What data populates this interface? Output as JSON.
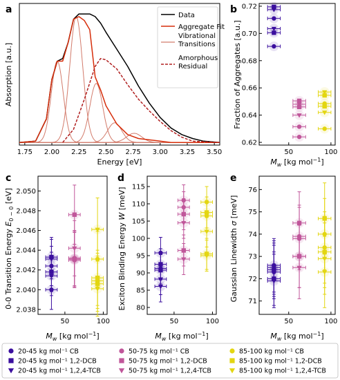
{
  "colors": {
    "g1": "#3b0f9e",
    "g2": "#c0569a",
    "g3": "#e3d611",
    "data_line": "#000000",
    "fit_line": "#d62d0a",
    "vib_line": "#d27a6a",
    "residual_line": "#b01e1e"
  },
  "panels": {
    "a": "a",
    "b": "b",
    "c": "c",
    "d": "d",
    "e": "e"
  },
  "legend": {
    "entries": [
      {
        "label": "20-45 kg mol⁻¹ CB",
        "marker": "circle",
        "color": "g1"
      },
      {
        "label": "20-45 kg mol⁻¹ 1,2-DCB",
        "marker": "square",
        "color": "g1"
      },
      {
        "label": "20-45 kg mol⁻¹ 1,2,4-TCB",
        "marker": "triangle-down",
        "color": "g1"
      },
      {
        "label": "50-75 kg mol⁻¹ CB",
        "marker": "circle",
        "color": "g2"
      },
      {
        "label": "50-75 kg mol⁻¹ 1,2-DCB",
        "marker": "square",
        "color": "g2"
      },
      {
        "label": "50-75 kg mol⁻¹ 1,2,4-TCB",
        "marker": "triangle-down",
        "color": "g2"
      },
      {
        "label": "85-100 kg mol⁻¹ CB",
        "marker": "circle",
        "color": "g3"
      },
      {
        "label": "85-100 kg mol⁻¹ 1,2-DCB",
        "marker": "square",
        "color": "g3"
      },
      {
        "label": "85-100 kg mol⁻¹ 1,2,4-TCB",
        "marker": "triangle-down",
        "color": "g3"
      }
    ]
  },
  "chart_data": [
    {
      "panel": "a",
      "type": "line",
      "xlabel": "Energy [eV]",
      "ylabel": "Absorption [a.u.]",
      "xlim": [
        1.7,
        3.55
      ],
      "ylim": [
        0,
        1.08
      ],
      "xticks": [
        "1.75",
        "2.00",
        "2.25",
        "2.50",
        "2.75",
        "3.00",
        "3.25",
        "3.50"
      ],
      "legend": [
        "Data",
        "Aggregate Fit",
        "Vibrational Transitions",
        "Amorphous Residual"
      ],
      "legend_position": "top-right",
      "series": [
        {
          "name": "Data",
          "style": "solid",
          "color": "data_line",
          "x": [
            1.7,
            1.85,
            1.95,
            2.0,
            2.05,
            2.1,
            2.15,
            2.2,
            2.25,
            2.3,
            2.35,
            2.4,
            2.45,
            2.5,
            2.6,
            2.7,
            2.8,
            2.9,
            3.0,
            3.1,
            3.2,
            3.3,
            3.4,
            3.55
          ],
          "y": [
            0.02,
            0.03,
            0.2,
            0.5,
            0.64,
            0.66,
            0.78,
            0.96,
            1.0,
            1.0,
            1.0,
            0.98,
            0.93,
            0.86,
            0.73,
            0.6,
            0.45,
            0.32,
            0.21,
            0.13,
            0.08,
            0.05,
            0.03,
            0.02
          ]
        },
        {
          "name": "Aggregate Fit",
          "style": "solid",
          "color": "fit_line",
          "x": [
            1.7,
            1.85,
            1.95,
            2.0,
            2.05,
            2.1,
            2.15,
            2.2,
            2.25,
            2.3,
            2.35,
            2.4,
            2.45,
            2.5,
            2.6,
            2.7,
            2.8,
            2.9,
            3.0,
            3.1,
            3.55
          ],
          "y": [
            0.02,
            0.03,
            0.2,
            0.5,
            0.64,
            0.64,
            0.78,
            0.96,
            0.98,
            0.95,
            0.88,
            0.52,
            0.42,
            0.3,
            0.16,
            0.08,
            0.05,
            0.04,
            0.03,
            0.02,
            0.02
          ]
        },
        {
          "name": "Amorphous Residual",
          "style": "dashed",
          "color": "residual_line",
          "x": [
            2.1,
            2.2,
            2.3,
            2.4,
            2.45,
            2.5,
            2.6,
            2.7,
            2.8,
            2.9,
            3.0,
            3.1,
            3.2,
            3.3,
            3.55
          ],
          "y": [
            0.02,
            0.12,
            0.35,
            0.6,
            0.66,
            0.65,
            0.58,
            0.46,
            0.35,
            0.26,
            0.18,
            0.11,
            0.06,
            0.03,
            0.02
          ]
        }
      ],
      "vibrational_peaks": [
        {
          "center": 2.05,
          "amp": 0.62,
          "sigma": 0.055
        },
        {
          "center": 2.225,
          "amp": 0.96,
          "sigma": 0.06
        },
        {
          "center": 2.41,
          "amp": 0.45,
          "sigma": 0.06
        },
        {
          "center": 2.58,
          "amp": 0.15,
          "sigma": 0.065
        },
        {
          "center": 2.76,
          "amp": 0.07,
          "sigma": 0.07
        }
      ],
      "baseline": 0.02
    },
    {
      "panel": "b",
      "type": "scatter",
      "xlabel": "M_w [kg mol⁻¹]",
      "ylabel": "Fraction of Aggregates [a.u.]",
      "xlim": [
        15,
        105
      ],
      "ylim": [
        0.618,
        0.722
      ],
      "xticks": [
        50,
        100
      ],
      "yticks": [
        "0.62",
        "0.64",
        "0.66",
        "0.68",
        "0.70",
        "0.72"
      ],
      "points": [
        {
          "x": 32.5,
          "y": 0.7195,
          "marker": "square",
          "color": "g1"
        },
        {
          "x": 32.5,
          "y": 0.7175,
          "marker": "triangle-down",
          "color": "g1"
        },
        {
          "x": 32.5,
          "y": 0.711,
          "marker": "circle",
          "color": "g1"
        },
        {
          "x": 32.5,
          "y": 0.7035,
          "marker": "triangle-down",
          "color": "g1"
        },
        {
          "x": 32.5,
          "y": 0.7005,
          "marker": "square",
          "color": "g1"
        },
        {
          "x": 32.5,
          "y": 0.6905,
          "marker": "circle",
          "color": "g1"
        },
        {
          "x": 62.5,
          "y": 0.6505,
          "marker": "square",
          "color": "g2"
        },
        {
          "x": 62.5,
          "y": 0.648,
          "marker": "triangle-down",
          "color": "g2"
        },
        {
          "x": 62.5,
          "y": 0.646,
          "marker": "square",
          "color": "g2"
        },
        {
          "x": 62.5,
          "y": 0.64,
          "marker": "triangle-down",
          "color": "g2"
        },
        {
          "x": 62.5,
          "y": 0.6315,
          "marker": "circle",
          "color": "g2"
        },
        {
          "x": 62.5,
          "y": 0.624,
          "marker": "circle",
          "color": "g2"
        },
        {
          "x": 92.5,
          "y": 0.657,
          "marker": "triangle-down",
          "color": "g3"
        },
        {
          "x": 92.5,
          "y": 0.6545,
          "marker": "square",
          "color": "g3"
        },
        {
          "x": 92.5,
          "y": 0.6485,
          "marker": "circle",
          "color": "g3"
        },
        {
          "x": 92.5,
          "y": 0.6465,
          "marker": "square",
          "color": "g3"
        },
        {
          "x": 92.5,
          "y": 0.642,
          "marker": "triangle-down",
          "color": "g3"
        },
        {
          "x": 92.5,
          "y": 0.63,
          "marker": "circle",
          "color": "g3"
        }
      ],
      "xerr": 7.5
    },
    {
      "panel": "c",
      "type": "scatter",
      "xlabel": "M_w [kg mol⁻¹]",
      "ylabel": "0-0 Transition Energy E_0-0 [eV]",
      "xlim": [
        15,
        105
      ],
      "ylim": [
        2.0375,
        2.0515
      ],
      "xticks": [
        50,
        100
      ],
      "yticks": [
        "2.038",
        "2.040",
        "2.042",
        "2.044",
        "2.046",
        "2.048",
        "2.050"
      ],
      "points": [
        {
          "x": 32.5,
          "y": 2.0433,
          "yerr": 0.002,
          "marker": "square",
          "color": "g1"
        },
        {
          "x": 32.5,
          "y": 2.0431,
          "yerr": 0.002,
          "marker": "triangle-down",
          "color": "g1"
        },
        {
          "x": 32.5,
          "y": 2.0424,
          "yerr": 0.002,
          "marker": "circle",
          "color": "g1"
        },
        {
          "x": 32.5,
          "y": 2.0418,
          "yerr": 0.002,
          "marker": "square",
          "color": "g1"
        },
        {
          "x": 32.5,
          "y": 2.0414,
          "yerr": 0.002,
          "marker": "triangle-down",
          "color": "g1"
        },
        {
          "x": 32.5,
          "y": 2.04,
          "yerr": 0.002,
          "marker": "circle",
          "color": "g1"
        },
        {
          "x": 62.5,
          "y": 2.0476,
          "yerr": 0.003,
          "marker": "square",
          "color": "g2"
        },
        {
          "x": 62.5,
          "y": 2.0442,
          "yerr": 0.0028,
          "marker": "triangle-down",
          "color": "g2"
        },
        {
          "x": 62.5,
          "y": 2.0432,
          "yerr": 0.0028,
          "marker": "circle",
          "color": "g2"
        },
        {
          "x": 62.5,
          "y": 2.0431,
          "yerr": 0.0028,
          "marker": "square",
          "color": "g2"
        },
        {
          "x": 62.5,
          "y": 2.0431,
          "yerr": 0.0028,
          "marker": "triangle-down",
          "color": "g2"
        },
        {
          "x": 62.5,
          "y": 2.043,
          "yerr": 0.0028,
          "marker": "circle",
          "color": "g2"
        },
        {
          "x": 92.5,
          "y": 2.0461,
          "yerr": 0.0032,
          "marker": "triangle-down",
          "color": "g3"
        },
        {
          "x": 92.5,
          "y": 2.0431,
          "yerr": 0.0028,
          "marker": "circle",
          "color": "g3"
        },
        {
          "x": 92.5,
          "y": 2.0412,
          "yerr": 0.0028,
          "marker": "square",
          "color": "g3"
        },
        {
          "x": 92.5,
          "y": 2.0409,
          "yerr": 0.0028,
          "marker": "circle",
          "color": "g3"
        },
        {
          "x": 92.5,
          "y": 2.0406,
          "yerr": 0.0028,
          "marker": "square",
          "color": "g3"
        },
        {
          "x": 92.5,
          "y": 2.0401,
          "yerr": 0.0028,
          "marker": "triangle-down",
          "color": "g3"
        }
      ],
      "xerr": 7.5
    },
    {
      "panel": "d",
      "type": "scatter",
      "xlabel": "M_w [kg mol⁻¹]",
      "ylabel": "Exciton Binding Energy W [meV]",
      "xlim": [
        15,
        105
      ],
      "ylim": [
        78,
        118
      ],
      "xticks": [
        50,
        100
      ],
      "yticks": [
        "80",
        "85",
        "90",
        "95",
        "100",
        "105",
        "110",
        "115"
      ],
      "points": [
        {
          "x": 32.5,
          "y": 95.8,
          "yerr": 4.5,
          "marker": "circle",
          "color": "g1"
        },
        {
          "x": 32.5,
          "y": 92.5,
          "yerr": 4.5,
          "marker": "square",
          "color": "g1"
        },
        {
          "x": 32.5,
          "y": 91.3,
          "yerr": 4.5,
          "marker": "circle",
          "color": "g1"
        },
        {
          "x": 32.5,
          "y": 90.8,
          "yerr": 4.5,
          "marker": "square",
          "color": "g1"
        },
        {
          "x": 32.5,
          "y": 88.2,
          "yerr": 4.5,
          "marker": "triangle-down",
          "color": "g1"
        },
        {
          "x": 32.5,
          "y": 86.1,
          "yerr": 4.5,
          "marker": "triangle-down",
          "color": "g1"
        },
        {
          "x": 62.5,
          "y": 111.0,
          "yerr": 4.5,
          "marker": "circle",
          "color": "g2"
        },
        {
          "x": 62.5,
          "y": 109.0,
          "yerr": 4.5,
          "marker": "circle",
          "color": "g2"
        },
        {
          "x": 62.5,
          "y": 107.0,
          "yerr": 4.5,
          "marker": "square",
          "color": "g2"
        },
        {
          "x": 62.5,
          "y": 104.5,
          "yerr": 4.5,
          "marker": "triangle-down",
          "color": "g2"
        },
        {
          "x": 62.5,
          "y": 96.5,
          "yerr": 4.5,
          "marker": "square",
          "color": "g2"
        },
        {
          "x": 62.5,
          "y": 94.0,
          "yerr": 4.5,
          "marker": "triangle-down",
          "color": "g2"
        },
        {
          "x": 92.5,
          "y": 110.5,
          "yerr": 4.5,
          "marker": "circle",
          "color": "g3"
        },
        {
          "x": 92.5,
          "y": 107.5,
          "yerr": 4.5,
          "marker": "square",
          "color": "g3"
        },
        {
          "x": 92.5,
          "y": 106.5,
          "yerr": 4.5,
          "marker": "circle",
          "color": "g3"
        },
        {
          "x": 92.5,
          "y": 102.0,
          "yerr": 4.5,
          "marker": "triangle-down",
          "color": "g3"
        },
        {
          "x": 92.5,
          "y": 95.5,
          "yerr": 4.5,
          "marker": "square",
          "color": "g3"
        },
        {
          "x": 92.5,
          "y": 95.0,
          "yerr": 4.5,
          "marker": "triangle-down",
          "color": "g3"
        }
      ],
      "xerr": 7.5
    },
    {
      "panel": "e",
      "type": "scatter",
      "xlabel": "M_w [kg mol⁻¹]",
      "ylabel": "Gaussian Linewidth σ [meV]",
      "xlim": [
        15,
        105
      ],
      "ylim": [
        70.4,
        76.6
      ],
      "xticks": [
        50,
        100
      ],
      "yticks": [
        "71",
        "72",
        "73",
        "74",
        "75",
        "76"
      ],
      "points": [
        {
          "x": 32.5,
          "y": 72.6,
          "yerr": 1.2,
          "marker": "circle",
          "color": "g1"
        },
        {
          "x": 32.5,
          "y": 72.5,
          "yerr": 1.2,
          "marker": "triangle-down",
          "color": "g1"
        },
        {
          "x": 32.5,
          "y": 72.4,
          "yerr": 1.2,
          "marker": "square",
          "color": "g1"
        },
        {
          "x": 32.5,
          "y": 72.3,
          "yerr": 1.2,
          "marker": "circle",
          "color": "g1"
        },
        {
          "x": 32.5,
          "y": 72.0,
          "yerr": 1.2,
          "marker": "square",
          "color": "g1"
        },
        {
          "x": 32.5,
          "y": 71.9,
          "yerr": 1.2,
          "marker": "triangle-down",
          "color": "g1"
        },
        {
          "x": 62.5,
          "y": 74.5,
          "yerr": 1.4,
          "marker": "square",
          "color": "g2"
        },
        {
          "x": 62.5,
          "y": 73.9,
          "yerr": 1.4,
          "marker": "circle",
          "color": "g2"
        },
        {
          "x": 62.5,
          "y": 73.8,
          "yerr": 1.4,
          "marker": "circle",
          "color": "g2"
        },
        {
          "x": 62.5,
          "y": 73.0,
          "yerr": 1.4,
          "marker": "triangle-down",
          "color": "g2"
        },
        {
          "x": 62.5,
          "y": 73.0,
          "yerr": 1.4,
          "marker": "square",
          "color": "g2"
        },
        {
          "x": 62.5,
          "y": 72.5,
          "yerr": 1.4,
          "marker": "triangle-down",
          "color": "g2"
        },
        {
          "x": 92.5,
          "y": 74.7,
          "yerr": 1.6,
          "marker": "square",
          "color": "g3"
        },
        {
          "x": 92.5,
          "y": 74.0,
          "yerr": 1.6,
          "marker": "circle",
          "color": "g3"
        },
        {
          "x": 92.5,
          "y": 73.4,
          "yerr": 1.6,
          "marker": "circle",
          "color": "g3"
        },
        {
          "x": 92.5,
          "y": 73.2,
          "yerr": 1.6,
          "marker": "square",
          "color": "g3"
        },
        {
          "x": 92.5,
          "y": 72.9,
          "yerr": 1.6,
          "marker": "triangle-down",
          "color": "g3"
        },
        {
          "x": 92.5,
          "y": 72.3,
          "yerr": 1.6,
          "marker": "triangle-down",
          "color": "g3"
        }
      ],
      "xerr": 7.5
    }
  ]
}
